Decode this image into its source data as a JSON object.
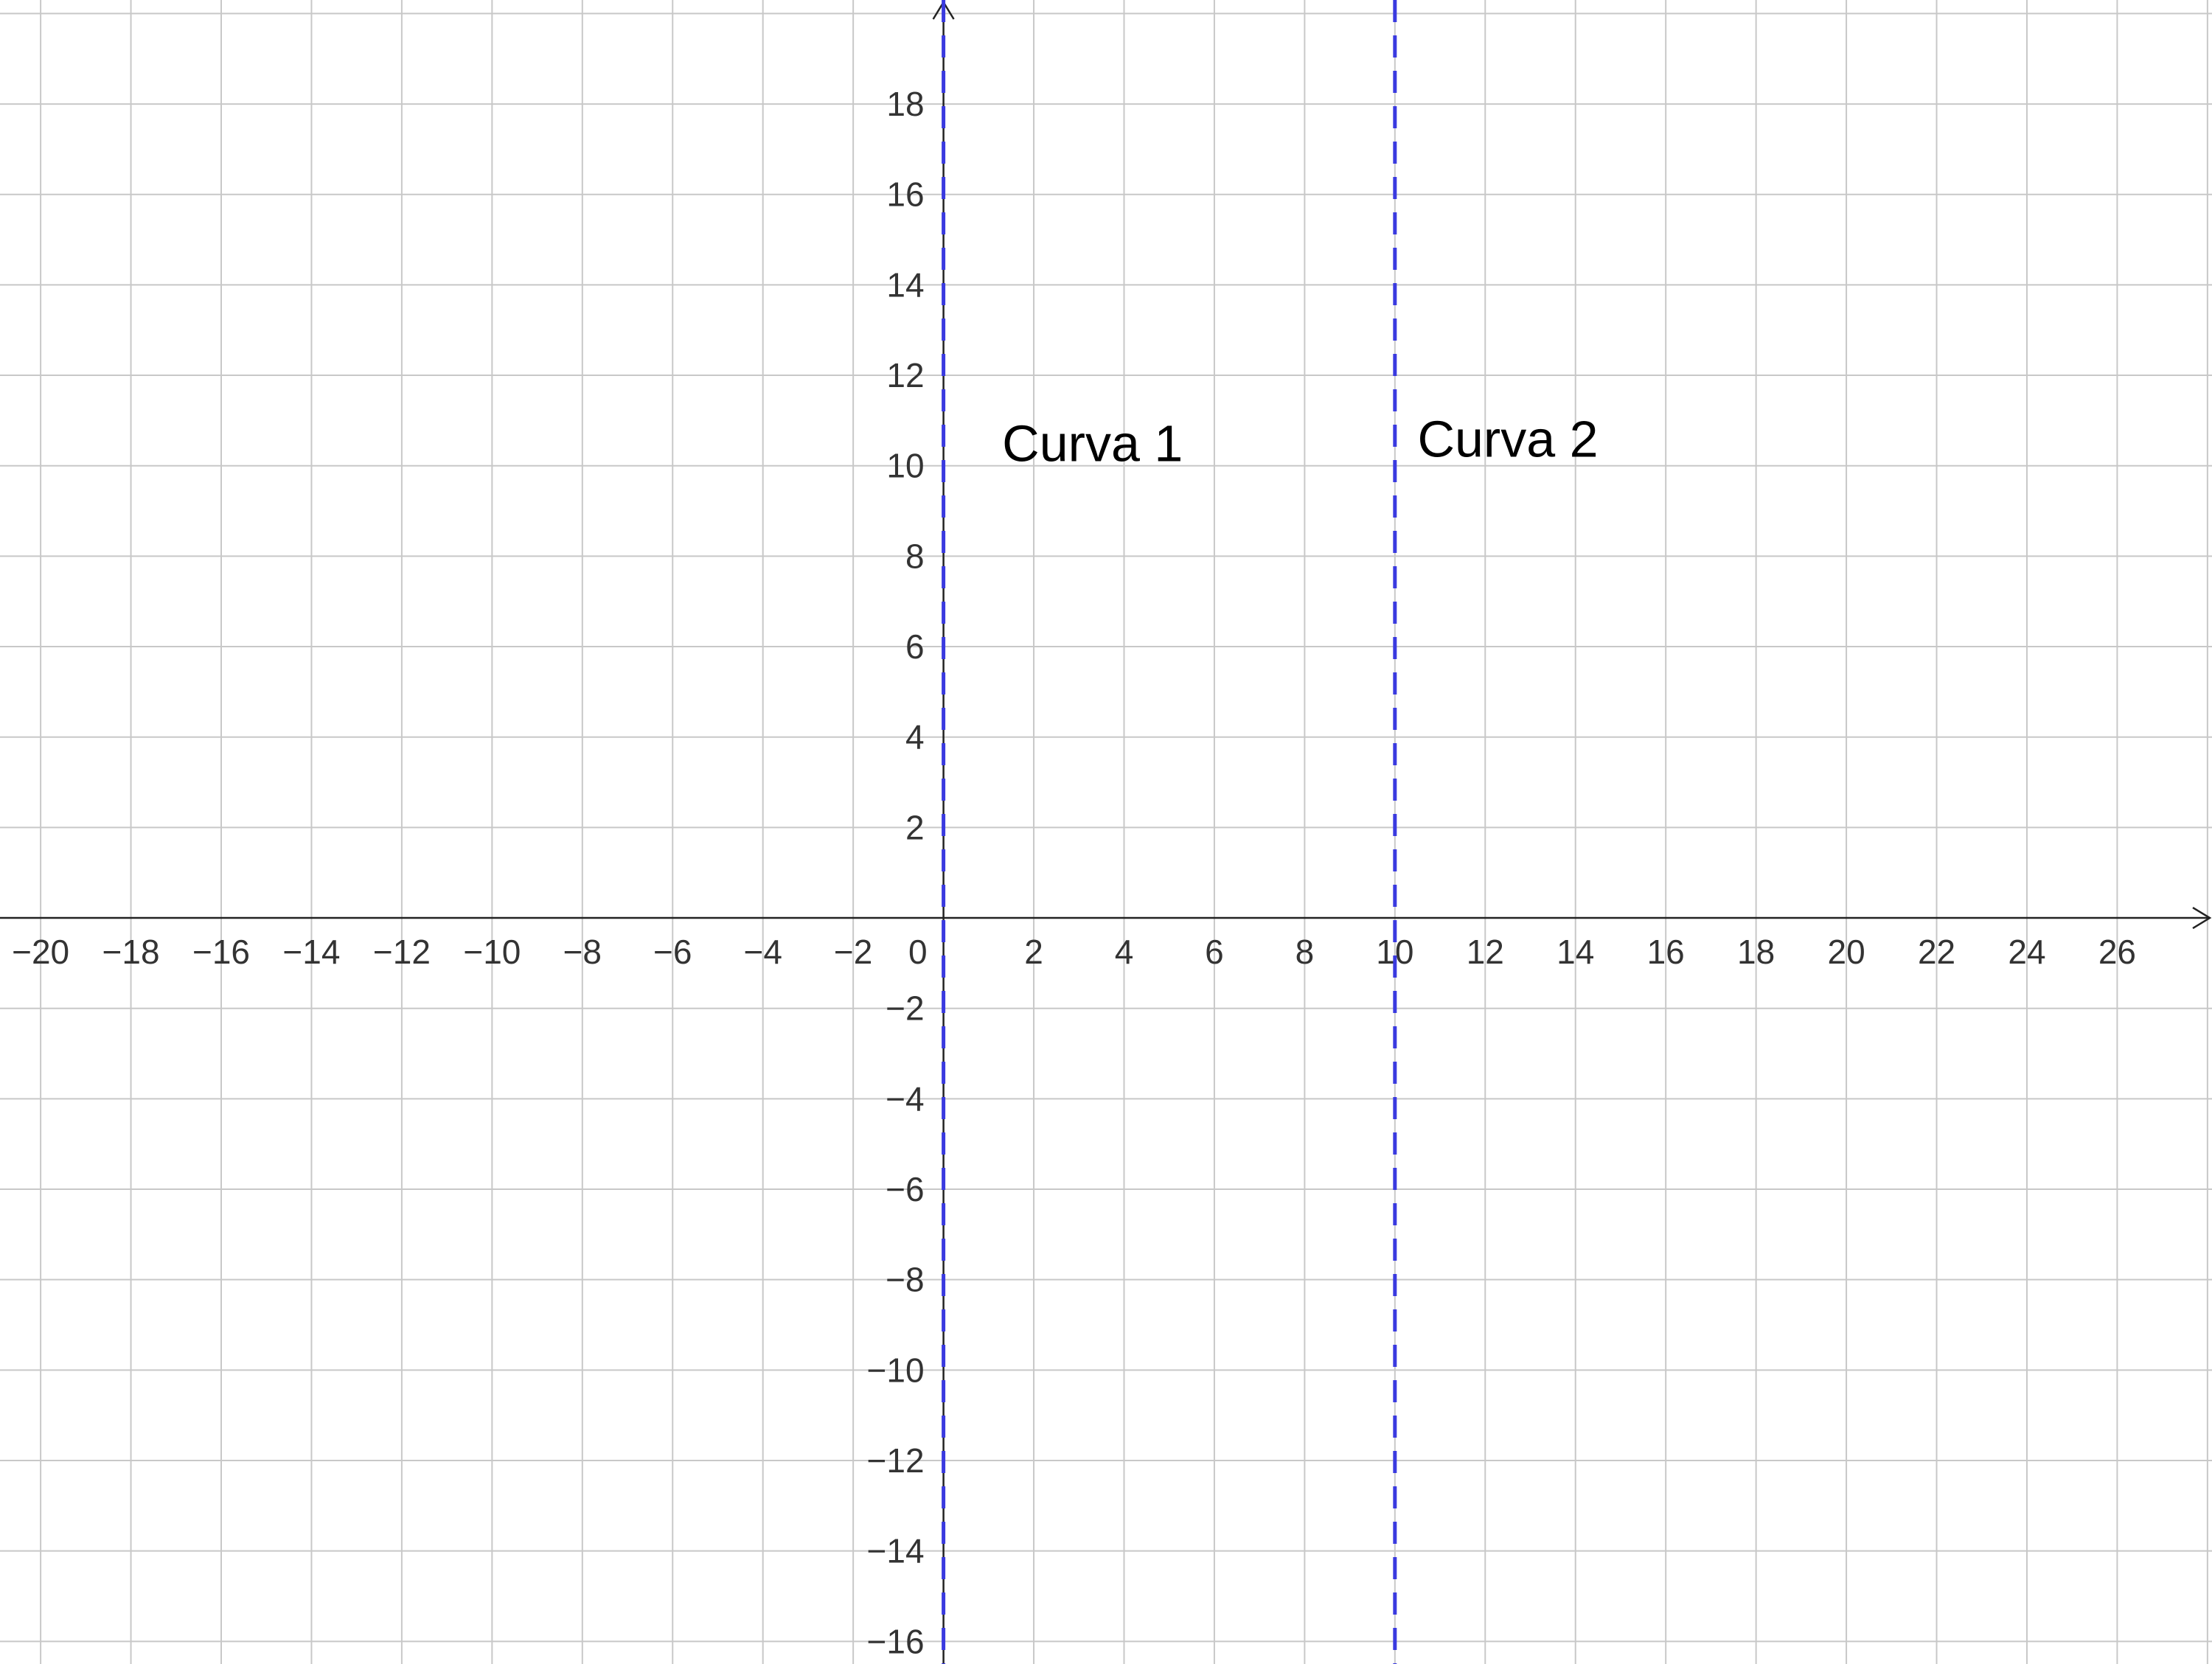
{
  "chart_data": {
    "type": "line",
    "title": "",
    "xlabel": "",
    "ylabel": "",
    "xlim": [
      -20.9,
      28.1
    ],
    "ylim": [
      -16.5,
      20.3
    ],
    "grid": true,
    "grid_step": 2,
    "x_tick_labels": [
      "−20",
      "−18",
      "−16",
      "−14",
      "−12",
      "−10",
      "−8",
      "−6",
      "−4",
      "−2",
      "0",
      "2",
      "4",
      "6",
      "8",
      "10",
      "12",
      "14",
      "16",
      "18",
      "20",
      "22",
      "24",
      "26"
    ],
    "y_tick_labels": [
      "−16",
      "−14",
      "−12",
      "−10",
      "−8",
      "−6",
      "−4",
      "−2",
      "2",
      "4",
      "6",
      "8",
      "10",
      "12",
      "14",
      "16",
      "18"
    ],
    "series": [
      {
        "name": "Curva 1",
        "kind": "vertical-line",
        "x": 0,
        "style": "dashed",
        "color": "#3a3ae0"
      },
      {
        "name": "Curva 2",
        "kind": "vertical-line",
        "x": 10,
        "style": "dashed",
        "color": "#3a3ae0"
      }
    ],
    "annotations": [
      {
        "text": "Curva 1",
        "x": 1.3,
        "y": 10.1
      },
      {
        "text": "Curva 2",
        "x": 10.5,
        "y": 10.2
      }
    ],
    "colors": {
      "grid": "#c8c8c8",
      "axis": "#222222",
      "series": "#3a3ae0"
    }
  }
}
